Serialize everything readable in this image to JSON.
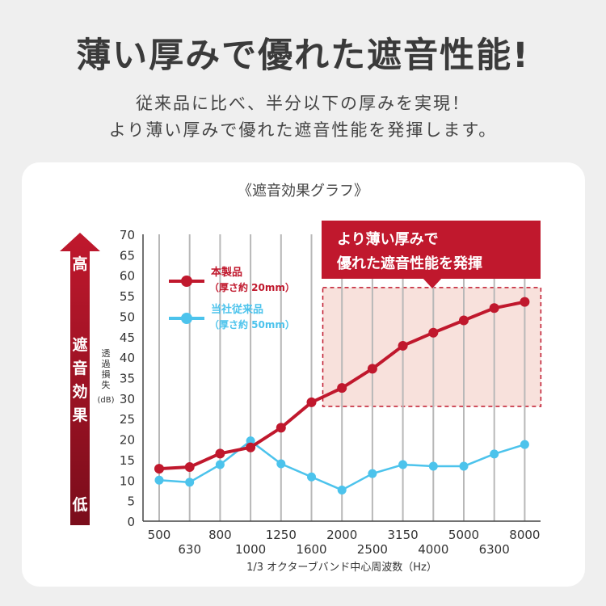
{
  "headline": "薄い厚みで優れた遮音性能!",
  "subtext": [
    "従来品に比べ、半分以下の厚みを実現！",
    "より薄い厚みで優れた遮音性能を発揮します。"
  ],
  "colors": {
    "background": "#efefef",
    "product": "#c0182d",
    "conventional": "#4cc3ec",
    "highlight_fill": "#f8e1dc",
    "callout": "#c0182d",
    "arrow_top": "#c0182d",
    "arrow_bottom": "#7a0d1b"
  },
  "chart_data": {
    "type": "line",
    "title": "《遮音効果グラフ》",
    "ylabel": "透過損失(dB)",
    "ylabel_chars": [
      "透",
      "過",
      "損",
      "失"
    ],
    "ylabel_unit": "(dB)",
    "xlabel": "1/3 オクターブバンド中心周波数（Hz）",
    "categories": [
      "500",
      "630",
      "800",
      "1000",
      "1250",
      "1600",
      "2000",
      "2500",
      "3150",
      "4000",
      "5000",
      "6300",
      "8000"
    ],
    "ylim": [
      0,
      70
    ],
    "yticks": [
      0,
      5,
      10,
      15,
      20,
      25,
      30,
      35,
      40,
      45,
      50,
      55,
      60,
      65,
      70
    ],
    "series": [
      {
        "name": "本製品",
        "detail": "（厚さ約 20mm）",
        "color": "#c0182d",
        "values": [
          12.8,
          13.2,
          16.5,
          18,
          22.8,
          29,
          32.5,
          37.2,
          42.8,
          46,
          49,
          52,
          53.5
        ]
      },
      {
        "name": "当社従来品",
        "detail": "（厚さ約 50mm）",
        "color": "#4cc3ec",
        "values": [
          10,
          9.5,
          13.8,
          19.6,
          14,
          10.8,
          7.6,
          11.6,
          13.8,
          13.4,
          13.4,
          16.4,
          18.7
        ]
      }
    ],
    "highlight_region": {
      "from_category": "1600",
      "to_category": "8000",
      "y_range": [
        28,
        57
      ]
    },
    "callout": [
      "より薄い厚みで",
      "優れた遮音性能を発揮"
    ],
    "effect_arrow": {
      "high": "高",
      "label": [
        "遮",
        "音",
        "効",
        "果"
      ],
      "low": "低"
    }
  }
}
